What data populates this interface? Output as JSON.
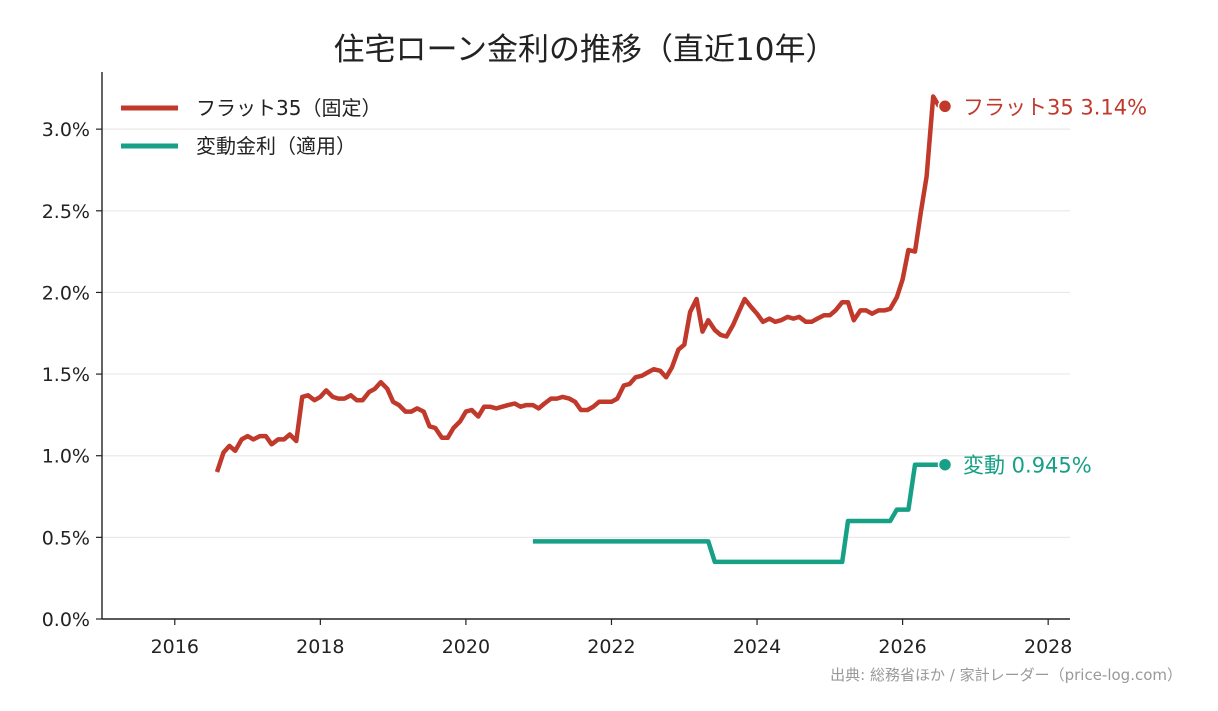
{
  "chart_data": {
    "type": "line",
    "title": "住宅ローン金利の推移（直近10年）",
    "xlabel": "",
    "ylabel": "",
    "xlim": [
      2015.0,
      2028.3
    ],
    "ylim": [
      0.0,
      0.0335
    ],
    "x_ticks": [
      2016,
      2018,
      2020,
      2022,
      2024,
      2026,
      2028
    ],
    "x_tick_labels": [
      "2016",
      "2018",
      "2020",
      "2022",
      "2024",
      "2026",
      "2028"
    ],
    "y_ticks": [
      0,
      0.005,
      0.01,
      0.015,
      0.02,
      0.025,
      0.03
    ],
    "y_tick_labels": [
      "0.0%",
      "0.5%",
      "1.0%",
      "1.5%",
      "2.0%",
      "2.5%",
      "3.0%"
    ],
    "grid": "horizontal",
    "legend_position": "top-left",
    "series": [
      {
        "name": "フラット35（固定）",
        "color": "#c0392b",
        "end_label": "フラット35 3.14%",
        "end_value": 3.14,
        "x": [
          2016.58,
          2016.67,
          2016.75,
          2016.83,
          2016.92,
          2017.0,
          2017.08,
          2017.17,
          2017.25,
          2017.33,
          2017.42,
          2017.5,
          2017.58,
          2017.67,
          2017.75,
          2017.83,
          2017.92,
          2018.0,
          2018.08,
          2018.17,
          2018.25,
          2018.33,
          2018.42,
          2018.5,
          2018.58,
          2018.67,
          2018.75,
          2018.83,
          2018.92,
          2019.0,
          2019.08,
          2019.17,
          2019.25,
          2019.33,
          2019.42,
          2019.5,
          2019.58,
          2019.67,
          2019.75,
          2019.83,
          2019.92,
          2020.0,
          2020.08,
          2020.17,
          2020.25,
          2020.33,
          2020.42,
          2020.5,
          2020.58,
          2020.67,
          2020.75,
          2020.83,
          2020.92,
          2021.0,
          2021.08,
          2021.17,
          2021.25,
          2021.33,
          2021.42,
          2021.5,
          2021.58,
          2021.67,
          2021.75,
          2021.83,
          2021.92,
          2022.0,
          2022.08,
          2022.17,
          2022.25,
          2022.33,
          2022.42,
          2022.5,
          2022.58,
          2022.67,
          2022.75,
          2022.83,
          2022.92,
          2023.0,
          2023.08,
          2023.17,
          2023.25,
          2023.33,
          2023.42,
          2023.5,
          2023.58,
          2023.67,
          2023.75,
          2023.83,
          2023.92,
          2024.0,
          2024.08,
          2024.17,
          2024.25,
          2024.33,
          2024.42,
          2024.5,
          2024.58,
          2024.67,
          2024.75,
          2024.83,
          2024.92,
          2025.0,
          2025.08,
          2025.17,
          2025.25,
          2025.33,
          2025.42,
          2025.5,
          2025.58,
          2025.67,
          2025.75,
          2025.83,
          2025.92,
          2026.0,
          2026.08,
          2026.17,
          2026.25,
          2026.33,
          2026.42,
          2026.5
        ],
        "y": [
          0.009,
          0.0102,
          0.0106,
          0.0103,
          0.011,
          0.0112,
          0.011,
          0.0112,
          0.0112,
          0.0107,
          0.011,
          0.011,
          0.0113,
          0.0109,
          0.0136,
          0.0137,
          0.0134,
          0.0136,
          0.014,
          0.0136,
          0.0135,
          0.0135,
          0.0137,
          0.0134,
          0.0134,
          0.0139,
          0.0141,
          0.0145,
          0.0141,
          0.0133,
          0.0131,
          0.0127,
          0.0127,
          0.0129,
          0.0127,
          0.0118,
          0.0117,
          0.0111,
          0.0111,
          0.0117,
          0.0121,
          0.0127,
          0.0128,
          0.0124,
          0.013,
          0.013,
          0.0129,
          0.013,
          0.0131,
          0.0132,
          0.013,
          0.0131,
          0.0131,
          0.0129,
          0.0132,
          0.0135,
          0.0135,
          0.0136,
          0.0135,
          0.0133,
          0.0128,
          0.0128,
          0.013,
          0.0133,
          0.0133,
          0.0133,
          0.0135,
          0.0143,
          0.0144,
          0.0148,
          0.0149,
          0.0151,
          0.0153,
          0.0152,
          0.0148,
          0.0154,
          0.0165,
          0.0168,
          0.0188,
          0.0196,
          0.0176,
          0.0183,
          0.0177,
          0.0174,
          0.0173,
          0.018,
          0.0188,
          0.0196,
          0.0191,
          0.0187,
          0.0182,
          0.0184,
          0.0182,
          0.0183,
          0.0185,
          0.0184,
          0.0185,
          0.0182,
          0.0182,
          0.0184,
          0.0186,
          0.0186,
          0.0189,
          0.0194,
          0.0194,
          0.0183,
          0.0189,
          0.0189,
          0.0187,
          0.0189,
          0.0189,
          0.019,
          0.0197,
          0.0208,
          0.0226,
          0.0225,
          0.0249,
          0.0271,
          0.032,
          0.0314
        ]
      },
      {
        "name": "変動金利（適用）",
        "color": "#16a085",
        "end_label": "変動 0.945%",
        "end_value": 0.945,
        "x": [
          2020.92,
          2023.33,
          2023.42,
          2025.17,
          2025.25,
          2025.83,
          2025.92,
          2026.08,
          2026.17,
          2026.5
        ],
        "y": [
          0.00475,
          0.00475,
          0.0035,
          0.0035,
          0.006,
          0.006,
          0.0067,
          0.0067,
          0.00945,
          0.00945
        ]
      }
    ]
  },
  "source_note": "出典: 総務省ほか / 家計レーダー（price-log.com）"
}
